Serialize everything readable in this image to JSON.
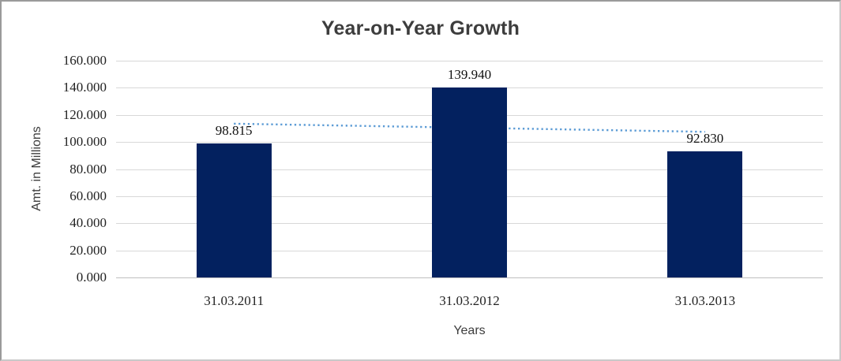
{
  "chart_data": {
    "type": "bar",
    "title": "Year-on-Year Growth",
    "xlabel": "Years",
    "ylabel": "Amt. in Millions",
    "categories": [
      "31.03.2011",
      "31.03.2012",
      "31.03.2013"
    ],
    "values": [
      98.815,
      139.94,
      92.83
    ],
    "data_labels": [
      "98.815",
      "139.940",
      "92.830"
    ],
    "ylim": [
      0,
      160
    ],
    "ytick_step": 20,
    "ytick_labels": [
      "160.000",
      "140.000",
      "120.000",
      "100.000",
      "80.000",
      "60.000",
      "40.000",
      "20.000",
      "0.000"
    ],
    "grid": true,
    "legend": "none",
    "bar_color": "#03215f",
    "gridline_color": "#d8d8d8",
    "trendline": {
      "type": "linear",
      "style": "dotted",
      "color": "#5b9bd5",
      "endpoint_values": [
        113.5,
        107.5
      ]
    }
  }
}
